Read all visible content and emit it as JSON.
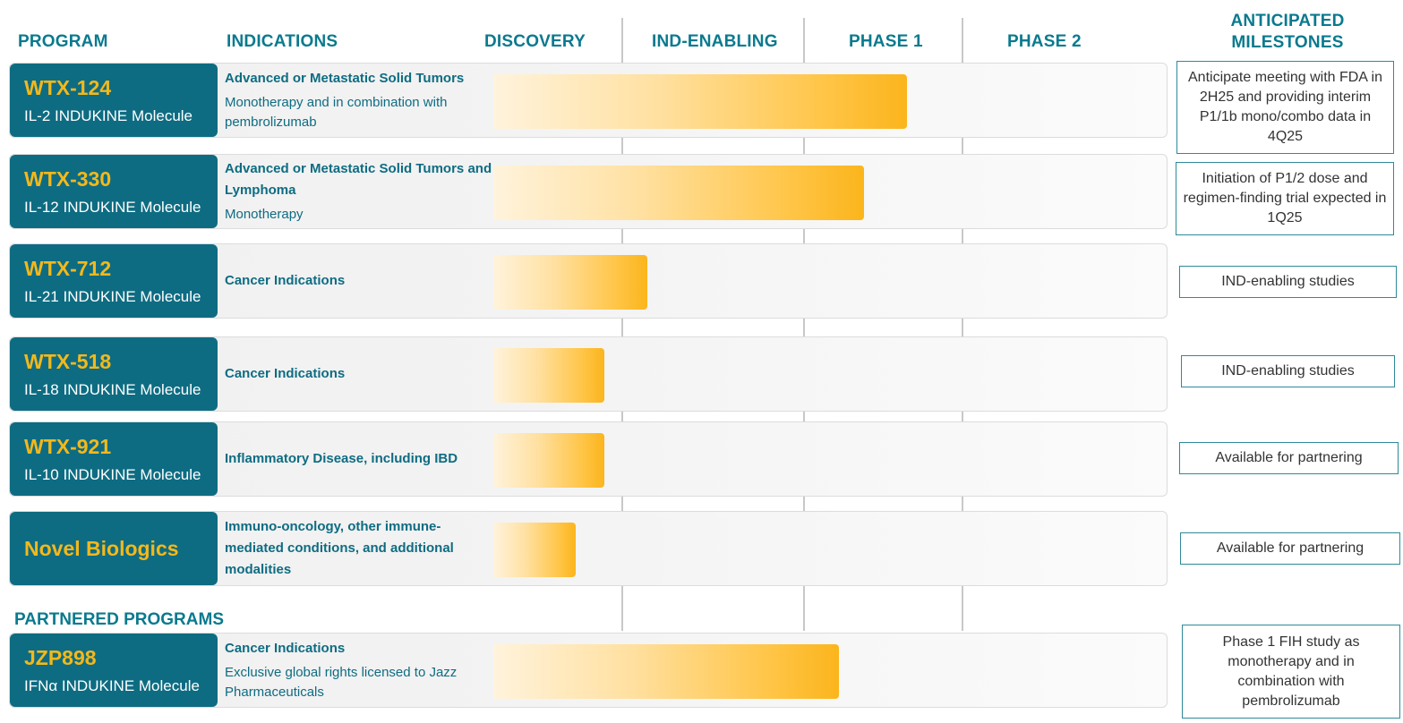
{
  "headers": {
    "program": "PROGRAM",
    "indications": "INDICATIONS",
    "discovery": "DISCOVERY",
    "ind_enabling": "IND-ENABLING",
    "phase1": "PHASE 1",
    "phase2": "PHASE 2",
    "milestones_line1": "ANTICIPATED",
    "milestones_line2": "MILESTONES"
  },
  "partnered_label": "PARTNERED PROGRAMS",
  "colors": {
    "teal": "#0e6c82",
    "gold": "#f3b81b",
    "bar_end": "#fbb51c"
  },
  "chart_data": {
    "type": "bar",
    "orientation": "horizontal",
    "title": "",
    "stages": [
      "DISCOVERY",
      "IND-ENABLING",
      "PHASE 1",
      "PHASE 2"
    ],
    "xlim": [
      0,
      4
    ],
    "categories": [
      "WTX-124",
      "WTX-330",
      "WTX-712",
      "WTX-518",
      "WTX-921",
      "Novel Biologics",
      "JZP898"
    ],
    "values": [
      2.65,
      2.38,
      1.14,
      0.86,
      0.86,
      0.64,
      2.22
    ],
    "programs": [
      {
        "name": "WTX-124",
        "subtitle": "IL-2 INDUKINE Molecule",
        "indication": "Advanced or Metastatic Solid Tumors",
        "indication_sub": "Monotherapy and in combination with pembrolizumab",
        "progress": 2.65,
        "milestone": "Anticipate meeting with FDA in 2H25 and providing interim P1/1b mono/combo data in 4Q25"
      },
      {
        "name": "WTX-330",
        "subtitle": "IL-12 INDUKINE Molecule",
        "indication": "Advanced or Metastatic Solid Tumors and Lymphoma",
        "indication_sub": "Monotherapy",
        "progress": 2.38,
        "milestone": "Initiation of P1/2 dose and regimen-finding trial expected in 1Q25"
      },
      {
        "name": "WTX-712",
        "subtitle": "IL-21 INDUKINE Molecule",
        "indication": "Cancer Indications",
        "indication_sub": "",
        "progress": 1.14,
        "milestone": "IND-enabling studies"
      },
      {
        "name": "WTX-518",
        "subtitle": "IL-18 INDUKINE Molecule",
        "indication": "Cancer Indications",
        "indication_sub": "",
        "progress": 0.86,
        "milestone": "IND-enabling studies"
      },
      {
        "name": "WTX-921",
        "subtitle": "IL-10 INDUKINE Molecule",
        "indication": "Inflammatory Disease, including IBD",
        "indication_sub": "",
        "progress": 0.86,
        "milestone": "Available for partnering"
      },
      {
        "name": "Novel Biologics",
        "subtitle": "",
        "indication": "Immuno-oncology, other immune-mediated conditions, and additional modalities",
        "indication_sub": "",
        "progress": 0.64,
        "milestone": "Available for partnering"
      },
      {
        "name": "JZP898",
        "subtitle": "IFNα INDUKINE Molecule",
        "indication": "Cancer Indications",
        "indication_sub": "Exclusive global rights licensed to Jazz Pharmaceuticals",
        "progress": 2.22,
        "milestone": "Phase 1 FIH study as monotherapy and in combination with pembrolizumab"
      }
    ]
  }
}
